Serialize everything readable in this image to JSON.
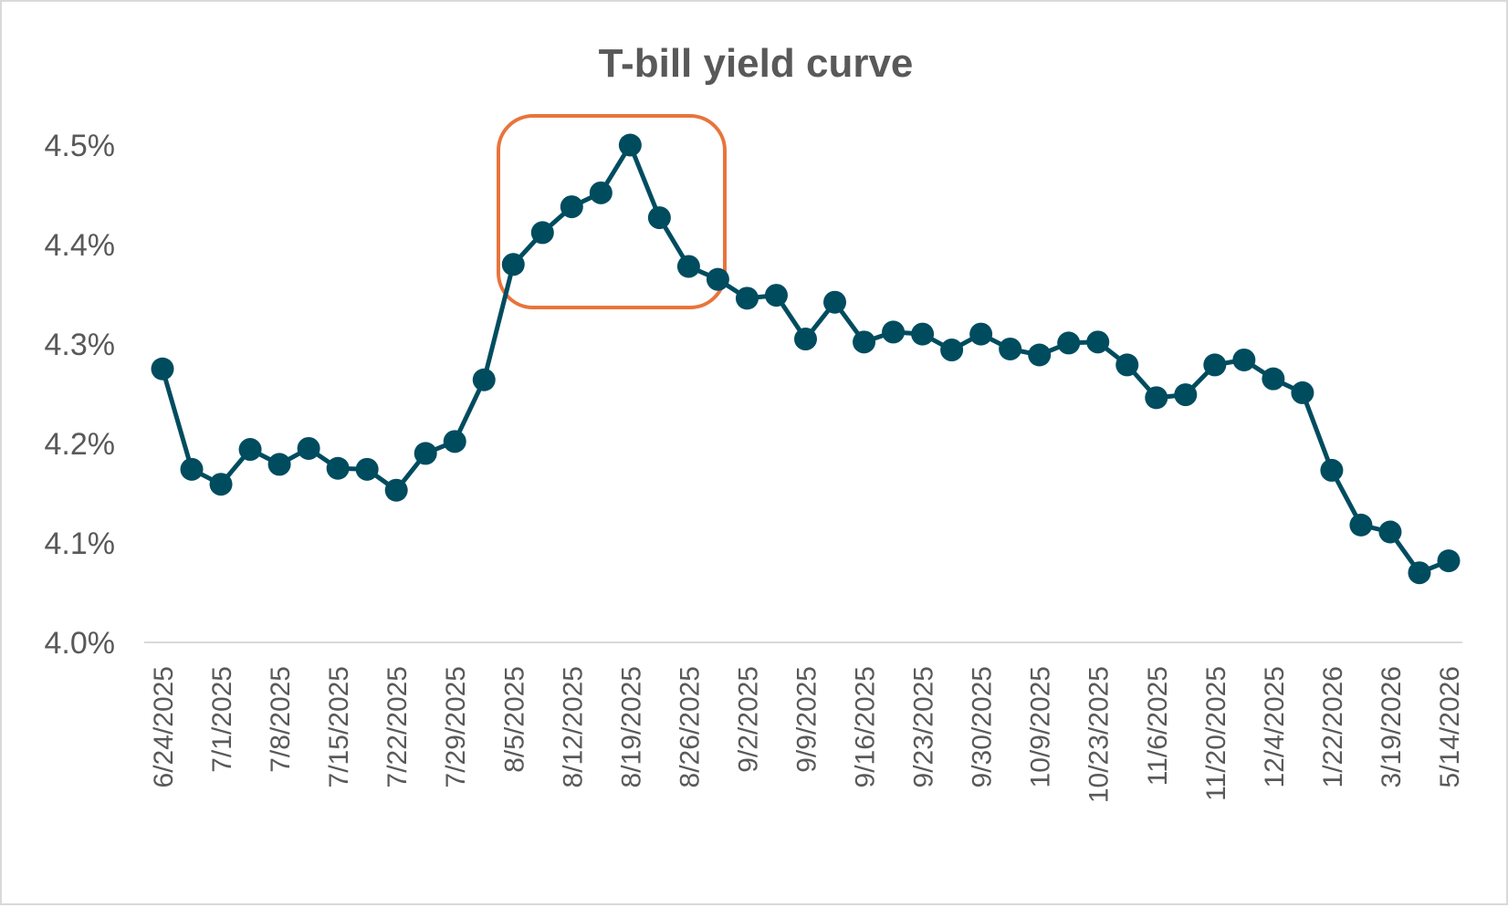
{
  "chart_data": {
    "type": "line",
    "title": "T-bill yield curve",
    "xlabel": "",
    "ylabel": "",
    "ylim": [
      4.0,
      4.5
    ],
    "y_ticks": [
      "4.0%",
      "4.1%",
      "4.2%",
      "4.3%",
      "4.4%",
      "4.5%"
    ],
    "grid": false,
    "legend": null,
    "x_tick_labels": [
      "6/24/2025",
      "7/1/2025",
      "7/8/2025",
      "7/15/2025",
      "7/22/2025",
      "7/29/2025",
      "8/5/2025",
      "8/12/2025",
      "8/19/2025",
      "8/26/2025",
      "9/2/2025",
      "9/9/2025",
      "9/16/2025",
      "9/23/2025",
      "9/30/2025",
      "10/9/2025",
      "10/23/2025",
      "11/6/2025",
      "11/20/2025",
      "12/4/2025",
      "1/22/2026",
      "3/19/2026",
      "5/14/2026"
    ],
    "series": [
      {
        "name": "T-bill yield",
        "color": "#004c5f",
        "values": [
          4.275,
          4.174,
          4.159,
          4.194,
          4.179,
          4.195,
          4.175,
          4.174,
          4.153,
          4.19,
          4.202,
          4.264,
          4.38,
          4.412,
          4.438,
          4.452,
          4.5,
          4.427,
          4.378,
          4.365,
          4.346,
          4.349,
          4.305,
          4.342,
          4.302,
          4.312,
          4.31,
          4.294,
          4.31,
          4.295,
          4.289,
          4.301,
          4.302,
          4.279,
          4.246,
          4.249,
          4.279,
          4.284,
          4.265,
          4.251,
          4.173,
          4.118,
          4.111,
          4.07,
          4.082
        ]
      }
    ],
    "annotations": [
      {
        "type": "rounded-rectangle",
        "color": "#e8743b",
        "covers_points": [
          13,
          20
        ],
        "note": "highlight around peak near 8/19/2025"
      }
    ]
  },
  "title": "T-bill yield curve",
  "colors": {
    "line": "#004c5f",
    "highlight": "#e8743b",
    "axis": "#d9d9d9",
    "text": "#595959"
  }
}
